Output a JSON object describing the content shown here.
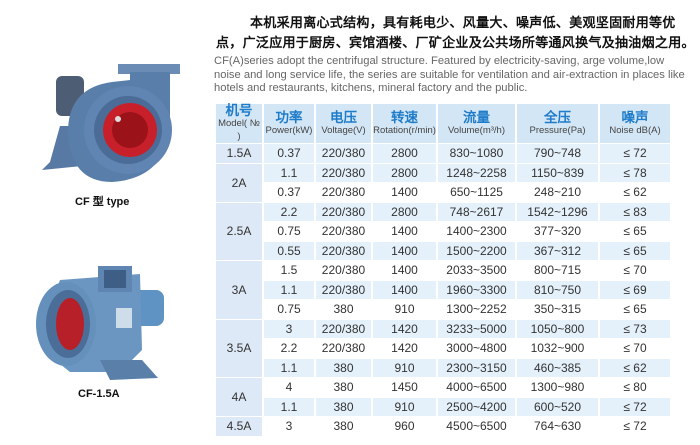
{
  "intro": {
    "chinese": "本机采用离心式结构，具有耗电少、风量大、噪声低、美观坚固耐用等优点，广泛应用于厨房、宾馆酒楼、厂矿企业及公共场所等通风换气及抽油烟之用。",
    "english": "CF(A)series adopt the centrifugal structure. Featured by electricity-saving, arge volume,low noise and long service life, the series are suitable for ventilation and air-extraction in places like hotels and restaurants, kitchens, mineral factory and the public."
  },
  "products": [
    {
      "caption": "CF 型 type"
    },
    {
      "caption": "CF-1.5A"
    }
  ],
  "colors": {
    "body": "#5a7fa8",
    "impeller": "#c8202a",
    "header_bg": "#d3e6f6",
    "header_text": "#1f7cc9",
    "row_stripe": "#e4f1fb"
  },
  "table": {
    "headers": [
      {
        "cn": "机号",
        "en": "Model( № )"
      },
      {
        "cn": "功率",
        "en": "Power(kW)"
      },
      {
        "cn": "电压",
        "en": "Voltage(V)"
      },
      {
        "cn": "转速",
        "en": "Rotation(r/min)"
      },
      {
        "cn": "流量",
        "en": "Volume(m³/h)"
      },
      {
        "cn": "全压",
        "en": "Pressure(Pa)"
      },
      {
        "cn": "噪声",
        "en": "Noise dB(A)"
      }
    ],
    "groups": [
      {
        "model": "1.5A",
        "rows": [
          [
            "0.37",
            "220/380",
            "2800",
            "830~1080",
            "790~748",
            "≤ 72"
          ]
        ]
      },
      {
        "model": "2A",
        "rows": [
          [
            "1.1",
            "220/380",
            "2800",
            "1248~2258",
            "1150~839",
            "≤ 78"
          ],
          [
            "0.37",
            "220/380",
            "1400",
            "650~1125",
            "248~210",
            "≤ 62"
          ]
        ]
      },
      {
        "model": "2.5A",
        "rows": [
          [
            "2.2",
            "220/380",
            "2800",
            "748~2617",
            "1542~1296",
            "≤ 83"
          ],
          [
            "0.75",
            "220/380",
            "1400",
            "1400~2300",
            "377~320",
            "≤ 65"
          ],
          [
            "0.55",
            "220/380",
            "1400",
            "1500~2200",
            "367~312",
            "≤ 65"
          ]
        ]
      },
      {
        "model": "3A",
        "rows": [
          [
            "1.5",
            "220/380",
            "1400",
            "2033~3500",
            "800~715",
            "≤ 70"
          ],
          [
            "1.1",
            "220/380",
            "1400",
            "1960~3300",
            "810~750",
            "≤ 69"
          ],
          [
            "0.75",
            "380",
            "910",
            "1300~2252",
            "350~315",
            "≤ 65"
          ]
        ]
      },
      {
        "model": "3.5A",
        "rows": [
          [
            "3",
            "220/380",
            "1420",
            "3233~5000",
            "1050~800",
            "≤ 73"
          ],
          [
            "2.2",
            "220/380",
            "1420",
            "3000~4800",
            "1032~900",
            "≤ 70"
          ],
          [
            "1.1",
            "380",
            "910",
            "2300~3150",
            "460~385",
            "≤ 62"
          ]
        ]
      },
      {
        "model": "4A",
        "rows": [
          [
            "4",
            "380",
            "1450",
            "4000~6500",
            "1300~980",
            "≤ 80"
          ],
          [
            "1.1",
            "380",
            "910",
            "2500~4200",
            "600~520",
            "≤ 72"
          ]
        ]
      },
      {
        "model": "4.5A",
        "rows": [
          [
            "3",
            "380",
            "960",
            "4500~6500",
            "764~630",
            "≤ 72"
          ]
        ]
      }
    ]
  }
}
